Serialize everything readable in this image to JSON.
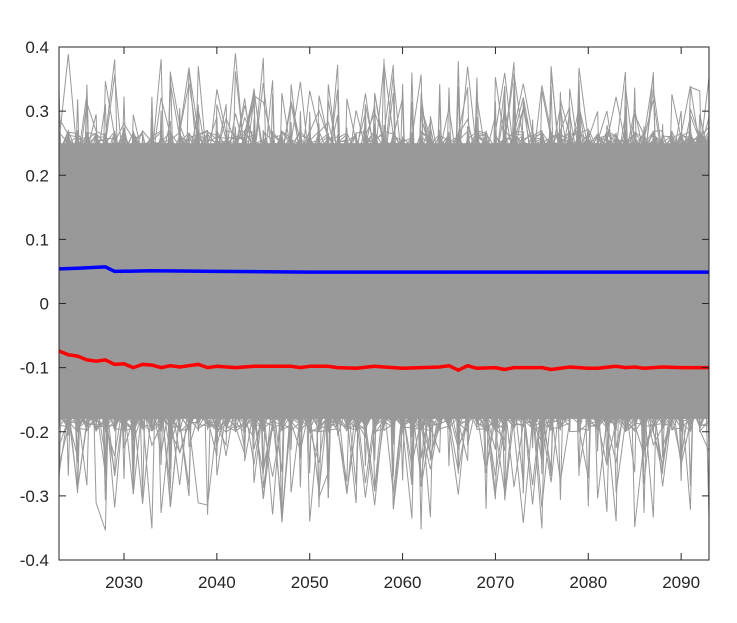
{
  "chart_data": {
    "type": "line",
    "title": "",
    "xlabel": "",
    "ylabel": "",
    "xlim": [
      2023,
      2093
    ],
    "ylim": [
      -0.4,
      0.4
    ],
    "x_ticks": [
      2030,
      2040,
      2050,
      2060,
      2070,
      2080,
      2090
    ],
    "y_ticks": [
      0.4,
      0.3,
      0.2,
      0.1,
      0,
      -0.1,
      -0.2,
      -0.3,
      -0.4
    ],
    "x_tick_labels": [
      "2030",
      "2040",
      "2050",
      "2060",
      "2070",
      "2080",
      "2090"
    ],
    "y_tick_labels": [
      "0.4",
      "0.3",
      "0.2",
      "0.1",
      "0",
      "-0.1",
      "-0.2",
      "-0.3",
      "-0.4"
    ],
    "grid": false,
    "legend": "none",
    "colors": {
      "ensemble": "#999999",
      "upper_series": "#0000ff",
      "lower_series": "#ff0000",
      "axes": "#262626"
    },
    "ensemble_envelope": {
      "upper_typical": 0.27,
      "lower_typical": -0.2,
      "upper_max": 0.4,
      "lower_min": -0.36
    },
    "series": [
      {
        "color": "#0000ff",
        "x": [
          2023,
          2025,
          2028,
          2029,
          2033,
          2040,
          2050,
          2060,
          2070,
          2080,
          2093
        ],
        "values": [
          0.054,
          0.055,
          0.057,
          0.05,
          0.051,
          0.05,
          0.049,
          0.049,
          0.049,
          0.049,
          0.049
        ]
      },
      {
        "color": "#ff0000",
        "x": [
          2023,
          2024,
          2025,
          2026,
          2027,
          2028,
          2029,
          2030,
          2031,
          2032,
          2033,
          2034,
          2035,
          2036,
          2037,
          2038,
          2039,
          2040,
          2042,
          2044,
          2046,
          2048,
          2049,
          2050,
          2052,
          2053,
          2055,
          2057,
          2058,
          2060,
          2062,
          2064,
          2065,
          2066,
          2067,
          2068,
          2070,
          2071,
          2072,
          2075,
          2076,
          2078,
          2080,
          2081,
          2083,
          2084,
          2085,
          2086,
          2088,
          2090,
          2093
        ],
        "values": [
          -0.074,
          -0.08,
          -0.082,
          -0.088,
          -0.09,
          -0.088,
          -0.095,
          -0.094,
          -0.1,
          -0.095,
          -0.096,
          -0.1,
          -0.097,
          -0.099,
          -0.097,
          -0.095,
          -0.1,
          -0.098,
          -0.1,
          -0.098,
          -0.098,
          -0.098,
          -0.1,
          -0.098,
          -0.098,
          -0.1,
          -0.101,
          -0.098,
          -0.099,
          -0.101,
          -0.1,
          -0.099,
          -0.097,
          -0.104,
          -0.097,
          -0.101,
          -0.1,
          -0.103,
          -0.1,
          -0.1,
          -0.103,
          -0.099,
          -0.101,
          -0.101,
          -0.098,
          -0.1,
          -0.099,
          -0.101,
          -0.099,
          -0.1,
          -0.1
        ]
      }
    ]
  }
}
